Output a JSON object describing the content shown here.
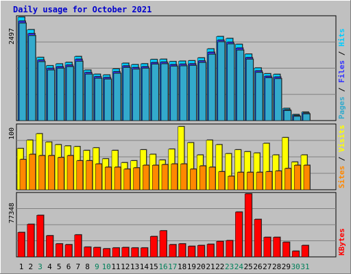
{
  "chart_data": {
    "type": "bar",
    "title": "Daily usage for October 2021",
    "categories": [
      "1",
      "2",
      "3",
      "4",
      "5",
      "6",
      "7",
      "8",
      "9",
      "10",
      "11",
      "12",
      "13",
      "14",
      "15",
      "16",
      "17",
      "18",
      "19",
      "20",
      "21",
      "22",
      "23",
      "24",
      "25",
      "26",
      "27",
      "28",
      "29",
      "30",
      "31"
    ],
    "weekend_days": [
      "3",
      "9",
      "10",
      "16",
      "17",
      "23",
      "24",
      "30",
      "31"
    ],
    "panels": [
      {
        "id": "hits-files-pages",
        "ymax_label": "2497",
        "ylim": [
          0,
          2497
        ],
        "axis_labels": [
          "Pages",
          "Files",
          "Hits"
        ],
        "series": [
          {
            "name": "Hits",
            "color": "#00ccff",
            "values": [
              2497,
              2194,
              1524,
              1324,
              1368,
              1404,
              1546,
              1218,
              1118,
              1100,
              1246,
              1384,
              1350,
              1370,
              1474,
              1480,
              1424,
              1434,
              1444,
              1512,
              1730,
              2028,
              1982,
              1840,
              1604,
              1270,
              1130,
              1115,
              294,
              146,
              204
            ]
          },
          {
            "name": "Files",
            "color": "#3333ff",
            "values": [
              2400,
              2100,
              1460,
              1260,
              1300,
              1340,
              1480,
              1160,
              1060,
              1040,
              1180,
              1320,
              1280,
              1300,
              1400,
              1410,
              1350,
              1360,
              1370,
              1440,
              1650,
              1940,
              1890,
              1750,
              1520,
              1200,
              1070,
              1050,
              260,
              120,
              180
            ]
          },
          {
            "name": "Pages",
            "color": "#33aacc",
            "values": [
              2350,
              2050,
              1420,
              1220,
              1260,
              1300,
              1430,
              1120,
              1020,
              1000,
              1140,
              1280,
              1240,
              1260,
              1360,
              1370,
              1310,
              1320,
              1330,
              1400,
              1600,
              1900,
              1850,
              1700,
              1480,
              1160,
              1030,
              1010,
              240,
              100,
              160
            ]
          }
        ]
      },
      {
        "id": "visits-sites",
        "ymax_label": "100",
        "ylim": [
          0,
          100
        ],
        "axis_labels": [
          "Sites",
          "Visits"
        ],
        "series": [
          {
            "name": "Visits",
            "color": "#ffff00",
            "values": [
              64,
              77,
              87,
              74,
              70,
              68,
              67,
              61,
              65,
              48,
              61,
              42,
              45,
              62,
              55,
              46,
              63,
              98,
              73,
              54,
              77,
              70,
              56,
              62,
              59,
              57,
              72,
              54,
              81,
              43,
              54
            ]
          },
          {
            "name": "Sites",
            "color": "#ff8800",
            "values": [
              47,
              55,
              53,
              53,
              50,
              53,
              45,
              45,
              40,
              35,
              35,
              32,
              34,
              38,
              38,
              39,
              40,
              40,
              32,
              37,
              35,
              28,
              21,
              27,
              27,
              27,
              28,
              29,
              33,
              38,
              38
            ]
          }
        ]
      },
      {
        "id": "kbytes",
        "ymax_label": "77348",
        "ylim": [
          0,
          77348
        ],
        "axis_labels": [
          "KBytes"
        ],
        "series": [
          {
            "name": "KBytes",
            "color": "#ff0000",
            "values": [
              30000,
              40000,
              51000,
              26000,
              16000,
              15000,
              27000,
              12000,
              11500,
              10000,
              11000,
              11500,
              11000,
              11000,
              25000,
              32000,
              15000,
              16000,
              13000,
              14000,
              15500,
              19000,
              20000,
              55000,
              77348,
              46000,
              24000,
              24000,
              18000,
              7000,
              14000
            ]
          }
        ]
      }
    ]
  }
}
